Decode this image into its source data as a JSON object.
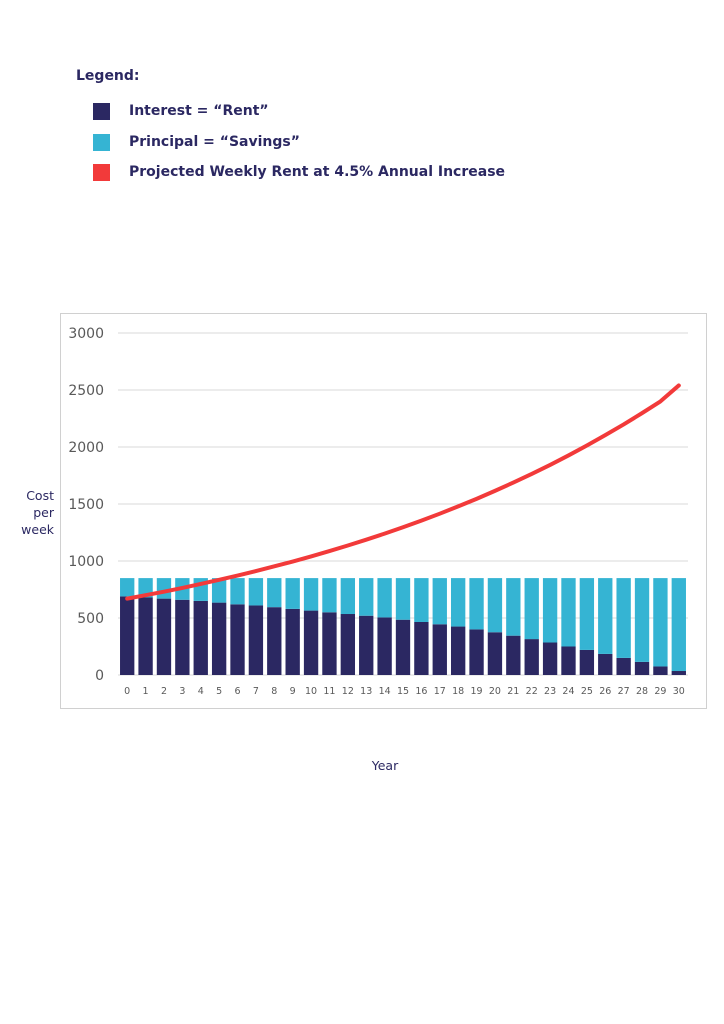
{
  "legend": {
    "title": "Legend:",
    "items": [
      {
        "label": "Interest = “Rent”",
        "color": "#2b2862"
      },
      {
        "label": "Principal = “Savings”",
        "color": "#35b4d3"
      },
      {
        "label": "Projected Weekly Rent at 4.5% Annual Increase",
        "color": "#f23a3a"
      }
    ]
  },
  "axis": {
    "ylabel_lines": [
      "Cost",
      "per",
      "week"
    ],
    "xlabel": "Year"
  },
  "chart_data": {
    "type": "bar",
    "stacked": true,
    "categories": [
      "0",
      "1",
      "2",
      "3",
      "4",
      "5",
      "6",
      "7",
      "8",
      "9",
      "10",
      "11",
      "12",
      "13",
      "14",
      "15",
      "16",
      "17",
      "18",
      "19",
      "20",
      "21",
      "22",
      "23",
      "24",
      "25",
      "26",
      "27",
      "28",
      "29",
      "30"
    ],
    "series": [
      {
        "name": "Interest = “Rent”",
        "type": "bar",
        "color": "#2b2862",
        "values": [
          690,
          680,
          670,
          660,
          650,
          635,
          620,
          610,
          595,
          580,
          565,
          550,
          535,
          520,
          505,
          485,
          465,
          445,
          425,
          400,
          375,
          345,
          315,
          285,
          250,
          220,
          185,
          150,
          115,
          75,
          35
        ]
      },
      {
        "name": "Principal = “Savings”",
        "type": "bar",
        "color": "#35b4d3",
        "values": [
          160,
          170,
          180,
          190,
          200,
          215,
          230,
          240,
          255,
          270,
          285,
          300,
          315,
          330,
          345,
          365,
          385,
          405,
          425,
          450,
          475,
          505,
          535,
          565,
          600,
          630,
          665,
          700,
          735,
          775,
          815
        ]
      },
      {
        "name": "Projected Weekly Rent at 4.5% Annual Increase",
        "type": "line",
        "color": "#f23a3a",
        "values": [
          670,
          700,
          731,
          764,
          799,
          835,
          872,
          912,
          953,
          995,
          1040,
          1087,
          1136,
          1187,
          1240,
          1296,
          1354,
          1415,
          1479,
          1545,
          1615,
          1688,
          1764,
          1843,
          1926,
          2013,
          2104,
          2198,
          2297,
          2400,
          2540
        ]
      }
    ],
    "yticks": [
      "0",
      "500",
      "1000",
      "1500",
      "2000",
      "2500",
      "3000"
    ],
    "ylim": [
      0,
      3000
    ],
    "xlabel": "Year",
    "ylabel": "Cost per week"
  }
}
